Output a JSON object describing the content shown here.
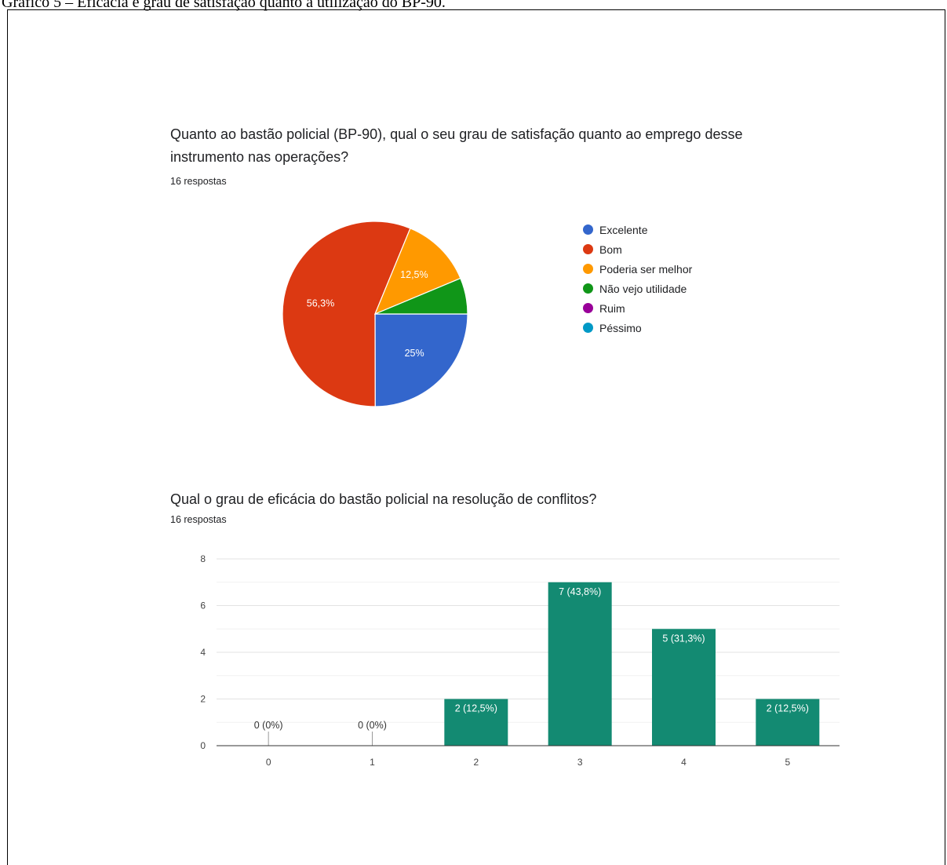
{
  "caption": "Gráfico 5 – Eficácia e grau de satisfação quanto à utilização do BP-90.",
  "pie": {
    "title": "Quanto ao bastão policial (BP-90), qual o seu grau de satisfação quanto ao emprego desse instrumento nas operações?",
    "responses": "16 respostas"
  },
  "bar": {
    "title": "Qual o grau de eficácia do bastão policial na resolução de conflitos?",
    "responses": "16 respostas"
  },
  "chart_data": [
    {
      "type": "pie",
      "title": "Quanto ao bastão policial (BP-90), qual o seu grau de satisfação quanto ao emprego desse instrumento nas operações?",
      "slices": [
        {
          "label": "Excelente",
          "value": 25,
          "display": "25%",
          "color": "#3366cc"
        },
        {
          "label": "Bom",
          "value": 56.3,
          "display": "56,3%",
          "color": "#dc3912"
        },
        {
          "label": "Poderia ser melhor",
          "value": 12.5,
          "display": "12,5%",
          "color": "#ff9900"
        },
        {
          "label": "Não vejo utilidade",
          "value": 6.3,
          "display": "",
          "color": "#109618"
        },
        {
          "label": "Ruim",
          "value": 0,
          "display": "",
          "color": "#990099"
        },
        {
          "label": "Péssimo",
          "value": 0,
          "display": "",
          "color": "#0099c6"
        }
      ],
      "legend_position": "right"
    },
    {
      "type": "bar",
      "title": "Qual o grau de eficácia do bastão policial na resolução de conflitos?",
      "categories": [
        "0",
        "1",
        "2",
        "3",
        "4",
        "5"
      ],
      "values": [
        0,
        0,
        2,
        7,
        5,
        2
      ],
      "labels": [
        "0 (0%)",
        "0 (0%)",
        "2 (12,5%)",
        "7 (43,8%)",
        "5 (31,3%)",
        "2 (12,5%)"
      ],
      "ylim": [
        0,
        8
      ],
      "yticks": [
        0,
        2,
        4,
        6,
        8
      ],
      "color": "#138a72",
      "grid": true
    }
  ]
}
